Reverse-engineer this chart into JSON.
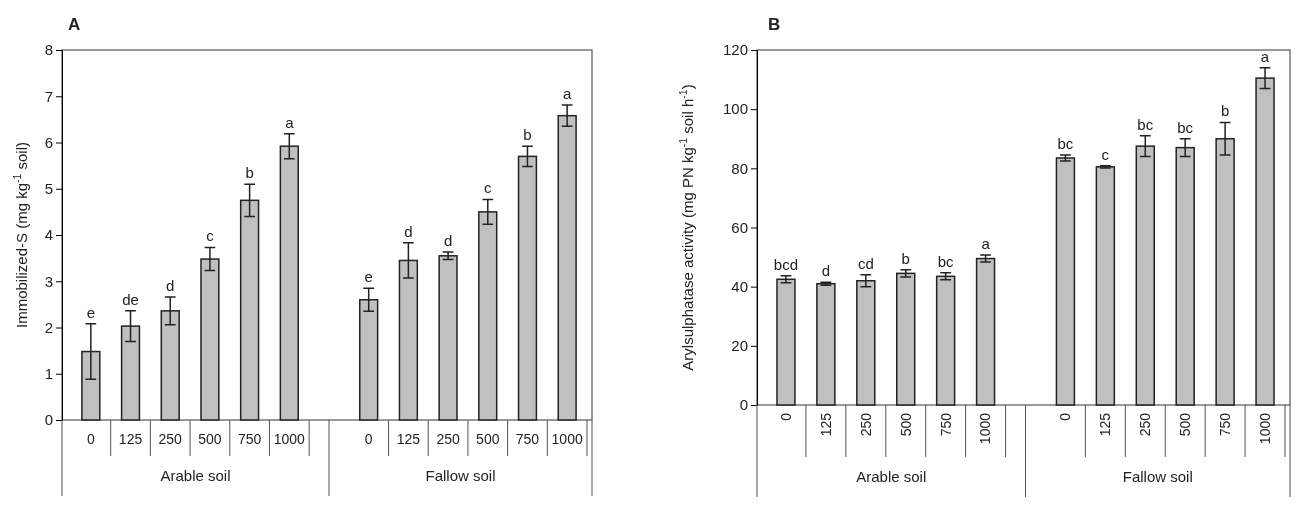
{
  "chart_data": [
    {
      "type": "bar",
      "title": "A",
      "ylabel": "Immobilized-S (mg kg$^{-1}$ soil)",
      "categories": [
        "0",
        "125",
        "250",
        "500",
        "750",
        "1000",
        null,
        "0",
        "125",
        "250",
        "500",
        "750",
        "1000"
      ],
      "values": [
        1.48,
        2.03,
        2.36,
        3.48,
        4.75,
        5.92,
        null,
        2.6,
        3.45,
        3.55,
        4.5,
        5.7,
        6.58
      ],
      "errors": [
        0.6,
        0.33,
        0.3,
        0.25,
        0.35,
        0.27,
        null,
        0.25,
        0.38,
        0.08,
        0.27,
        0.22,
        0.23
      ],
      "value_labels": [
        "e",
        "de",
        "d",
        "c",
        "b",
        "a",
        null,
        "e",
        "d",
        "d",
        "c",
        "b",
        "a"
      ],
      "color": "#c0c0c0",
      "ylim": [
        0,
        8
      ],
      "yticks": [
        0,
        1,
        2,
        3,
        4,
        5,
        6,
        7,
        8
      ],
      "annotations": [
        "Arable soil",
        "Fallow soil"
      ]
    },
    {
      "type": "bar",
      "title": "B",
      "ylabel": "Arylsulphatase activity (mg PN kg$^{-1}$ soil h$^{-1}$)",
      "categories": [
        "0",
        "125",
        "250",
        "500",
        "750",
        "1000",
        null,
        "0",
        "125",
        "250",
        "500",
        "750",
        "1000"
      ],
      "values": [
        42.5,
        41,
        42,
        44.5,
        43.5,
        49.5,
        null,
        83.5,
        80.5,
        87.5,
        87,
        90,
        110.5
      ],
      "errors": [
        1.2,
        0.5,
        2,
        1.2,
        1.2,
        1.2,
        null,
        1,
        0.4,
        3.5,
        3,
        5.5,
        3.5
      ],
      "value_labels": [
        "bcd",
        "d",
        "cd",
        "b",
        "bc",
        "a",
        null,
        "bc",
        "c",
        "bc",
        "bc",
        "b",
        "a"
      ],
      "color": "#c0c0c0",
      "ylim": [
        0,
        120
      ],
      "yticks": [
        0,
        20,
        40,
        60,
        80,
        100,
        120
      ],
      "annotations": [
        "Arable soil",
        "Fallow soil"
      ]
    }
  ]
}
